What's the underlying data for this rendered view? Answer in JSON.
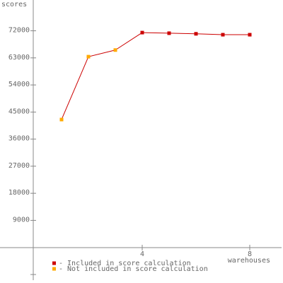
{
  "chart_data": {
    "type": "line",
    "y_label": "scores",
    "x_label": "warehouses",
    "x": [
      1,
      2,
      3,
      4,
      5,
      6,
      7,
      8
    ],
    "series": [
      {
        "name": "- Included in score calculation",
        "color": "#cc0000",
        "values": [
          null,
          null,
          null,
          71400,
          71200,
          71000,
          70700,
          70700
        ]
      },
      {
        "name": "- Not included in score calculation",
        "color": "#ffaa00",
        "values": [
          42500,
          63400,
          65600,
          null,
          null,
          null,
          null,
          null
        ]
      }
    ],
    "line_color": "#cc0000",
    "xlim": [
      0,
      9
    ],
    "xticks": [
      4,
      8
    ],
    "ylim": [
      -9000,
      82000
    ],
    "yticks": [
      9000,
      18000,
      27000,
      36000,
      45000,
      54000,
      63000,
      72000
    ]
  }
}
